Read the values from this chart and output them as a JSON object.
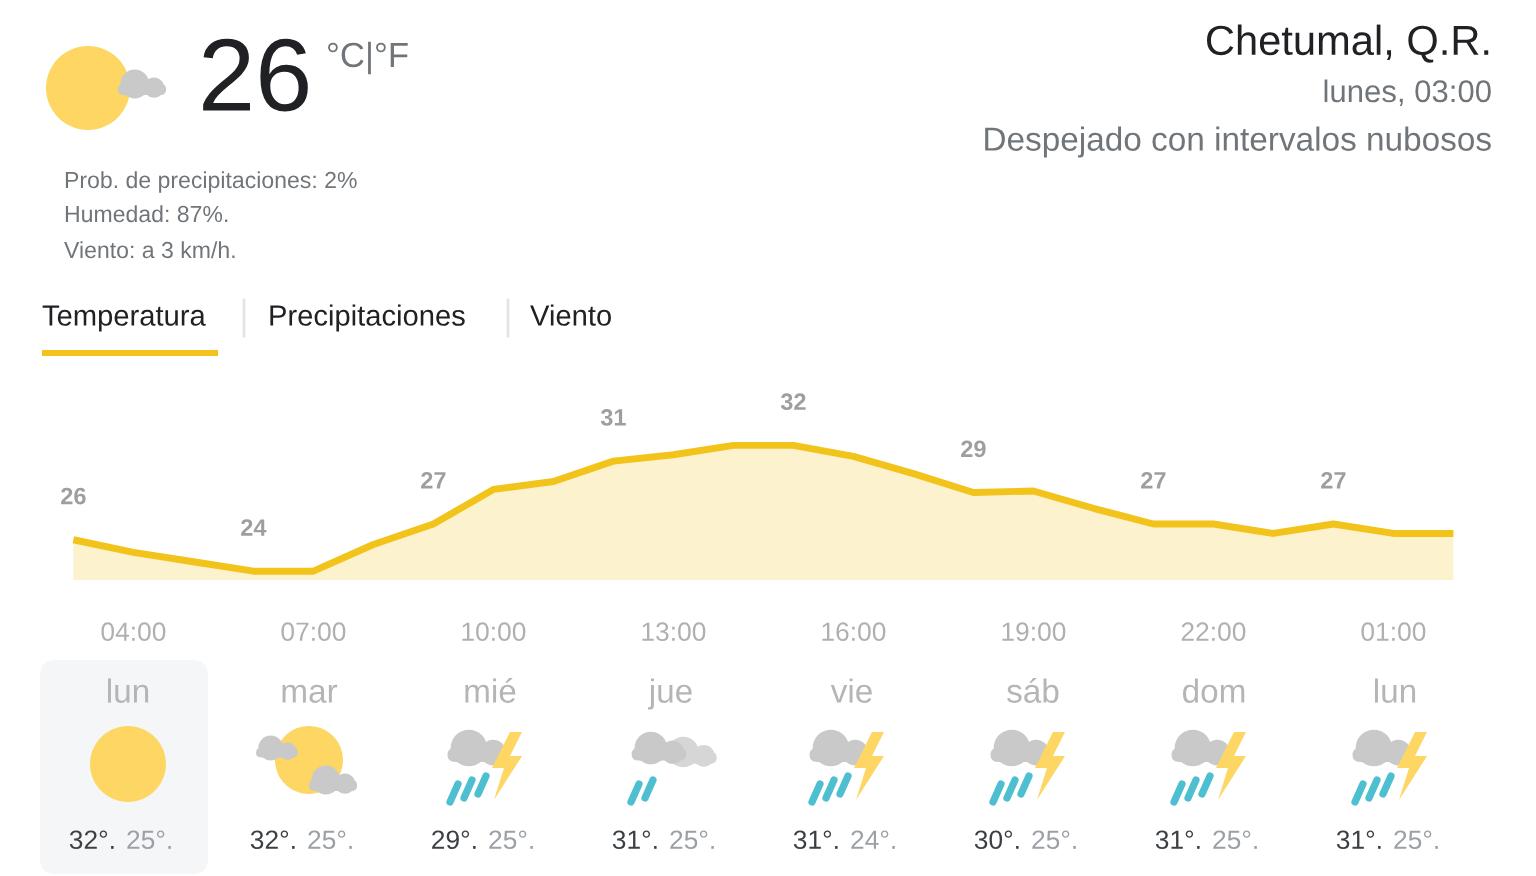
{
  "chart_data": {
    "type": "area",
    "title": "Chetumal, Q.R.",
    "subtitle": "lunes, 03:00",
    "categories": [
      null,
      "04:00",
      null,
      null,
      "07:00",
      null,
      null,
      "10:00",
      null,
      null,
      "13:00",
      null,
      null,
      "16:00",
      null,
      null,
      "19:00",
      null,
      null,
      "22:00",
      null,
      null,
      "01:00",
      null
    ],
    "series": [
      {
        "color": "#f2c31a",
        "values": [
          26,
          25.2,
          24.6,
          24,
          24,
          25.7,
          27,
          29.2,
          29.7,
          31,
          31.4,
          32,
          32,
          31.3,
          30.2,
          29,
          29.1,
          28,
          27,
          27,
          26.4,
          27,
          26.4,
          26.4
        ],
        "value_labels": [
          "26",
          null,
          null,
          "24",
          null,
          null,
          "27",
          null,
          null,
          "31",
          null,
          null,
          "32",
          null,
          null,
          "29",
          null,
          null,
          "27",
          null,
          null,
          "27",
          null,
          null
        ]
      }
    ],
    "tick_labels": "x",
    "annotations": [
      "26",
      "°C|°F",
      "Prob. de precipitaciones: 2%",
      "Humedad: 87%.",
      "Viento: a 3 km/h.",
      "Temperatura",
      "Precipitaciones",
      "Viento",
      "Despejado con intervalos nubosos",
      "lun",
      "32°.",
      "25°.",
      "mar",
      "32°.",
      "25°.",
      "mié",
      "29°.",
      "25°.",
      "jue",
      "31°.",
      "25°.",
      "vie",
      "31°.",
      "24°.",
      "sáb",
      "30°.",
      "25°.",
      "dom",
      "31°.",
      "25°.",
      "lun",
      "31°.",
      "25°."
    ]
  }
}
